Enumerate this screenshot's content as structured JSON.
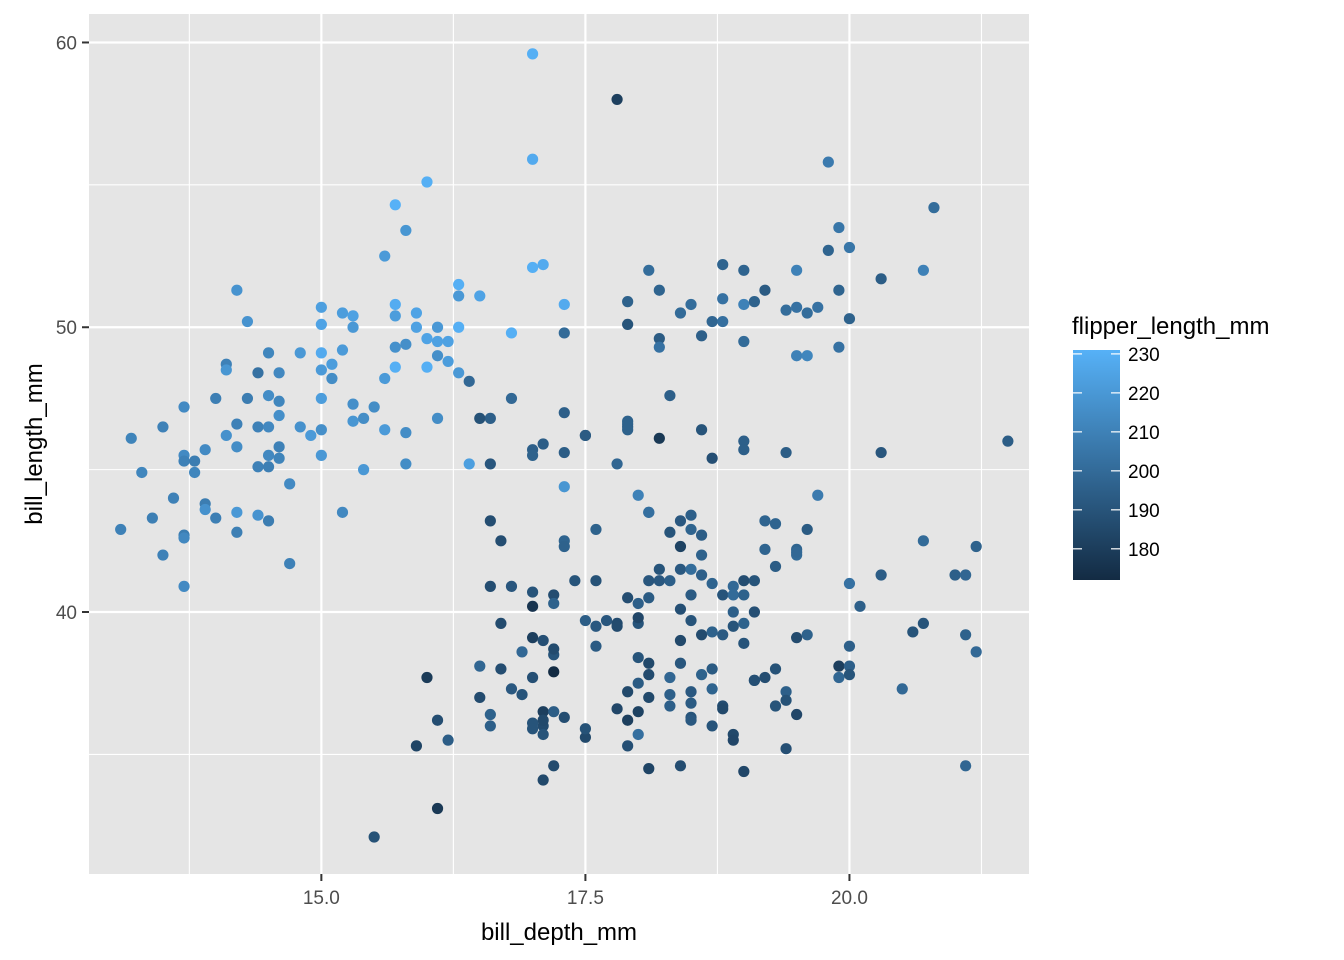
{
  "chart_data": {
    "type": "scatter",
    "xlabel": "bill_depth_mm",
    "ylabel": "bill_length_mm",
    "xlim": [
      12.8,
      21.7
    ],
    "ylim": [
      30.8,
      61
    ],
    "x_ticks": [
      15.0,
      17.5,
      20.0
    ],
    "x_tick_labels": [
      "15.0",
      "17.5",
      "20.0"
    ],
    "y_ticks": [
      40,
      50,
      60
    ],
    "y_tick_labels": [
      "40",
      "50",
      "60"
    ],
    "panel_background": "#e5e5e5",
    "grid_color": "#ffffff",
    "grid": true,
    "legend": {
      "title": "flipper_length_mm",
      "position": "right",
      "min": 172,
      "max": 231,
      "ticks": [
        180,
        190,
        200,
        210,
        220,
        230
      ],
      "tick_labels": [
        "180",
        "190",
        "200",
        "210",
        "220",
        "230"
      ],
      "color_low": "#132b43",
      "color_high": "#56b1f7"
    },
    "points": [
      [
        13.1,
        42.9,
        210
      ],
      [
        13.2,
        46.1,
        211
      ],
      [
        13.3,
        44.9,
        212
      ],
      [
        13.4,
        43.3,
        209
      ],
      [
        13.5,
        46.5,
        210
      ],
      [
        13.5,
        42.0,
        210
      ],
      [
        13.6,
        44.0,
        210
      ],
      [
        13.7,
        47.2,
        214
      ],
      [
        13.7,
        45.5,
        214
      ],
      [
        13.7,
        45.3,
        210
      ],
      [
        13.7,
        42.7,
        208
      ],
      [
        13.7,
        42.6,
        213
      ],
      [
        13.7,
        40.9,
        214
      ],
      [
        13.8,
        45.3,
        208
      ],
      [
        13.8,
        44.9,
        212
      ],
      [
        13.9,
        45.7,
        214
      ],
      [
        13.9,
        43.8,
        208
      ],
      [
        13.9,
        43.6,
        217
      ],
      [
        14.0,
        47.5,
        209
      ],
      [
        14.0,
        43.3,
        209
      ],
      [
        14.1,
        48.7,
        210
      ],
      [
        14.1,
        48.5,
        219
      ],
      [
        14.1,
        46.2,
        217
      ],
      [
        14.2,
        51.3,
        218
      ],
      [
        14.2,
        46.6,
        210
      ],
      [
        14.2,
        45.8,
        215
      ],
      [
        14.2,
        43.5,
        220
      ],
      [
        14.2,
        42.8,
        209
      ],
      [
        14.3,
        50.2,
        218
      ],
      [
        14.3,
        47.5,
        208
      ],
      [
        14.4,
        48.4,
        203
      ],
      [
        14.4,
        46.5,
        210
      ],
      [
        14.4,
        45.1,
        210
      ],
      [
        14.4,
        43.4,
        218
      ],
      [
        14.5,
        49.1,
        212
      ],
      [
        14.5,
        47.6,
        215
      ],
      [
        14.5,
        46.5,
        213
      ],
      [
        14.5,
        45.5,
        213
      ],
      [
        14.5,
        45.1,
        209
      ],
      [
        14.5,
        43.2,
        208
      ],
      [
        14.6,
        48.4,
        213
      ],
      [
        14.6,
        47.4,
        212
      ],
      [
        14.6,
        46.9,
        216
      ],
      [
        14.6,
        45.8,
        210
      ],
      [
        14.6,
        45.4,
        211
      ],
      [
        14.7,
        44.5,
        214
      ],
      [
        14.7,
        41.7,
        210
      ],
      [
        14.8,
        49.1,
        220
      ],
      [
        14.8,
        46.5,
        217
      ],
      [
        14.9,
        46.2,
        221
      ],
      [
        15.0,
        50.7,
        223
      ],
      [
        15.0,
        50.1,
        225
      ],
      [
        15.0,
        49.1,
        228
      ],
      [
        15.0,
        48.5,
        221
      ],
      [
        15.0,
        47.5,
        222
      ],
      [
        15.0,
        46.4,
        216
      ],
      [
        15.0,
        45.5,
        220
      ],
      [
        15.1,
        48.7,
        222
      ],
      [
        15.1,
        48.2,
        215
      ],
      [
        15.2,
        50.5,
        222
      ],
      [
        15.2,
        49.2,
        221
      ],
      [
        15.2,
        43.5,
        213
      ],
      [
        15.3,
        50.4,
        224
      ],
      [
        15.3,
        50.0,
        220
      ],
      [
        15.3,
        47.3,
        216
      ],
      [
        15.3,
        46.7,
        219
      ],
      [
        15.4,
        46.8,
        215
      ],
      [
        15.4,
        45.0,
        220
      ],
      [
        15.5,
        47.2,
        215
      ],
      [
        15.6,
        48.2,
        221
      ],
      [
        15.6,
        46.4,
        221
      ],
      [
        15.7,
        54.3,
        231
      ],
      [
        15.7,
        50.8,
        229
      ],
      [
        15.7,
        50.4,
        222
      ],
      [
        15.7,
        49.3,
        217
      ],
      [
        15.7,
        48.6,
        230
      ],
      [
        15.8,
        53.4,
        219
      ],
      [
        15.8,
        49.4,
        216
      ],
      [
        15.8,
        46.3,
        215
      ],
      [
        15.8,
        45.2,
        215
      ],
      [
        15.9,
        50.5,
        225
      ],
      [
        15.9,
        50.0,
        224
      ],
      [
        16.0,
        55.1,
        230
      ],
      [
        16.0,
        49.6,
        225
      ],
      [
        16.0,
        48.6,
        230
      ],
      [
        16.1,
        50.0,
        220
      ],
      [
        16.1,
        49.5,
        224
      ],
      [
        16.1,
        49.0,
        216
      ],
      [
        16.1,
        46.8,
        215
      ],
      [
        16.2,
        49.5,
        224
      ],
      [
        16.2,
        48.8,
        222
      ],
      [
        16.3,
        51.5,
        230
      ],
      [
        16.3,
        51.1,
        220
      ],
      [
        16.3,
        50.0,
        230
      ],
      [
        16.3,
        48.4,
        220
      ],
      [
        16.4,
        45.2,
        223
      ],
      [
        16.5,
        51.1,
        225
      ],
      [
        16.8,
        49.8,
        230
      ],
      [
        17.0,
        59.6,
        230
      ],
      [
        17.0,
        55.9,
        228
      ],
      [
        17.0,
        52.1,
        230
      ],
      [
        17.1,
        52.2,
        228
      ],
      [
        17.3,
        50.8,
        228
      ],
      [
        17.3,
        44.4,
        219
      ],
      [
        15.6,
        52.5,
        221
      ],
      [
        18.0,
        44.1,
        210
      ],
      [
        18.1,
        43.5,
        202
      ],
      [
        16.4,
        48.1,
        199
      ],
      [
        16.6,
        46.8,
        195
      ],
      [
        16.5,
        46.8,
        189
      ],
      [
        16.6,
        45.2,
        191
      ],
      [
        16.8,
        47.5,
        199
      ],
      [
        17.0,
        45.7,
        195
      ],
      [
        17.0,
        45.5,
        196
      ],
      [
        17.1,
        45.9,
        194
      ],
      [
        17.3,
        49.8,
        200
      ],
      [
        17.3,
        47.0,
        195
      ],
      [
        17.3,
        45.6,
        194
      ],
      [
        17.5,
        46.2,
        187
      ],
      [
        17.5,
        46.2,
        193
      ],
      [
        17.8,
        58.0,
        181
      ],
      [
        17.9,
        46.6,
        197
      ],
      [
        17.9,
        46.5,
        195
      ],
      [
        17.9,
        46.4,
        196
      ],
      [
        17.9,
        46.7,
        196
      ],
      [
        17.8,
        45.2,
        198
      ],
      [
        17.9,
        50.1,
        190
      ],
      [
        17.9,
        50.9,
        196
      ],
      [
        18.1,
        52.0,
        201
      ],
      [
        18.2,
        51.3,
        197
      ],
      [
        18.2,
        49.6,
        193
      ],
      [
        18.2,
        49.3,
        203
      ],
      [
        18.2,
        46.1,
        178
      ],
      [
        18.3,
        47.6,
        195
      ],
      [
        18.4,
        50.5,
        200
      ],
      [
        18.5,
        50.8,
        201
      ],
      [
        18.6,
        49.7,
        195
      ],
      [
        18.6,
        46.4,
        190
      ],
      [
        18.7,
        50.2,
        198
      ],
      [
        18.7,
        45.4,
        188
      ],
      [
        18.8,
        52.2,
        197
      ],
      [
        18.8,
        51.0,
        203
      ],
      [
        18.8,
        50.2,
        202
      ],
      [
        19.0,
        52.0,
        197
      ],
      [
        19.0,
        50.8,
        210
      ],
      [
        19.0,
        49.5,
        200
      ],
      [
        19.0,
        46.0,
        195
      ],
      [
        19.0,
        45.7,
        195
      ],
      [
        19.1,
        50.9,
        196
      ],
      [
        19.2,
        51.3,
        193
      ],
      [
        19.4,
        50.6,
        201
      ],
      [
        19.4,
        45.6,
        194
      ],
      [
        19.5,
        52.0,
        210
      ],
      [
        19.5,
        50.7,
        203
      ],
      [
        19.5,
        49.0,
        210
      ],
      [
        19.6,
        50.5,
        201
      ],
      [
        19.6,
        49.0,
        212
      ],
      [
        19.7,
        50.7,
        203
      ],
      [
        19.7,
        44.1,
        207
      ],
      [
        19.8,
        55.8,
        207
      ],
      [
        19.8,
        52.7,
        197
      ],
      [
        19.9,
        53.5,
        205
      ],
      [
        19.9,
        51.3,
        197
      ],
      [
        19.9,
        49.3,
        203
      ],
      [
        20.0,
        52.8,
        205
      ],
      [
        20.0,
        50.3,
        196
      ],
      [
        20.3,
        51.7,
        194
      ],
      [
        20.3,
        45.6,
        191
      ],
      [
        20.7,
        52.0,
        210
      ],
      [
        20.8,
        54.2,
        201
      ],
      [
        21.5,
        46.0,
        194
      ],
      [
        16.6,
        43.2,
        187
      ],
      [
        16.7,
        42.5,
        187
      ],
      [
        16.6,
        40.9,
        187
      ],
      [
        16.8,
        40.9,
        191
      ],
      [
        16.7,
        39.6,
        186
      ],
      [
        16.8,
        37.3,
        192
      ],
      [
        16.9,
        38.6,
        199
      ],
      [
        17.0,
        40.2,
        176
      ],
      [
        17.0,
        40.7,
        190
      ],
      [
        17.0,
        39.1,
        181
      ],
      [
        17.0,
        37.7,
        188
      ],
      [
        17.1,
        39.0,
        188
      ],
      [
        17.1,
        36.5,
        181
      ],
      [
        17.1,
        36.0,
        186
      ],
      [
        17.2,
        40.6,
        187
      ],
      [
        17.2,
        40.3,
        196
      ],
      [
        17.2,
        38.5,
        190
      ],
      [
        17.2,
        37.9,
        172
      ],
      [
        17.3,
        42.5,
        197
      ],
      [
        17.3,
        42.3,
        196
      ],
      [
        17.4,
        41.1,
        190
      ],
      [
        17.5,
        39.7,
        194
      ],
      [
        17.6,
        42.9,
        196
      ],
      [
        17.6,
        41.1,
        189
      ],
      [
        17.6,
        38.8,
        193
      ],
      [
        17.7,
        39.7,
        191
      ],
      [
        17.8,
        39.6,
        186
      ],
      [
        17.8,
        39.5,
        186
      ],
      [
        17.9,
        40.5,
        187
      ],
      [
        18.0,
        40.3,
        195
      ],
      [
        18.0,
        39.6,
        190
      ],
      [
        18.0,
        39.8,
        184
      ],
      [
        18.0,
        38.4,
        190
      ],
      [
        18.0,
        37.5,
        193
      ],
      [
        18.0,
        36.5,
        182
      ],
      [
        18.1,
        41.1,
        191
      ],
      [
        18.1,
        40.5,
        193
      ],
      [
        18.1,
        38.2,
        185
      ],
      [
        18.1,
        37.8,
        186
      ],
      [
        18.1,
        37.0,
        185
      ],
      [
        18.2,
        41.1,
        192
      ],
      [
        18.2,
        41.5,
        190
      ],
      [
        18.3,
        42.8,
        190
      ],
      [
        18.3,
        41.1,
        195
      ],
      [
        18.3,
        37.7,
        198
      ],
      [
        18.4,
        43.2,
        192
      ],
      [
        18.4,
        42.3,
        182
      ],
      [
        18.4,
        41.5,
        192
      ],
      [
        18.4,
        40.1,
        188
      ],
      [
        18.4,
        39.0,
        185
      ],
      [
        18.4,
        38.2,
        191
      ],
      [
        18.5,
        41.5,
        201
      ],
      [
        18.5,
        40.6,
        193
      ],
      [
        18.5,
        39.7,
        190
      ],
      [
        18.5,
        36.8,
        193
      ],
      [
        18.5,
        36.3,
        190
      ],
      [
        18.6,
        42.0,
        196
      ],
      [
        18.6,
        41.3,
        195
      ],
      [
        18.6,
        39.2,
        186
      ],
      [
        18.6,
        37.8,
        196
      ],
      [
        18.7,
        41.0,
        197
      ],
      [
        18.7,
        39.3,
        196
      ],
      [
        18.7,
        38.0,
        193
      ],
      [
        18.7,
        36.0,
        190
      ],
      [
        18.8,
        40.6,
        190
      ],
      [
        18.8,
        39.2,
        193
      ],
      [
        18.8,
        36.7,
        187
      ],
      [
        18.9,
        40.9,
        199
      ],
      [
        18.9,
        40.6,
        200
      ],
      [
        18.9,
        40.0,
        195
      ],
      [
        18.9,
        39.5,
        190
      ],
      [
        18.9,
        35.7,
        185
      ],
      [
        19.0,
        41.1,
        187
      ],
      [
        19.0,
        40.6,
        196
      ],
      [
        19.0,
        39.6,
        196
      ],
      [
        19.0,
        38.9,
        190
      ],
      [
        19.0,
        34.4,
        184
      ],
      [
        19.1,
        41.1,
        190
      ],
      [
        19.1,
        40.0,
        188
      ],
      [
        19.1,
        37.6,
        194
      ],
      [
        19.2,
        43.2,
        197
      ],
      [
        19.2,
        42.2,
        197
      ],
      [
        19.2,
        37.7,
        187
      ],
      [
        19.3,
        43.1,
        197
      ],
      [
        19.3,
        41.6,
        194
      ],
      [
        19.3,
        38.0,
        189
      ],
      [
        19.4,
        37.2,
        195
      ],
      [
        19.4,
        36.9,
        189
      ],
      [
        19.5,
        42.2,
        197
      ],
      [
        19.5,
        42.0,
        200
      ],
      [
        19.5,
        39.1,
        186
      ],
      [
        19.5,
        36.4,
        184
      ],
      [
        19.6,
        39.2,
        196
      ],
      [
        19.9,
        37.7,
        198
      ],
      [
        19.9,
        38.1,
        181
      ],
      [
        20.0,
        41.0,
        203
      ],
      [
        20.0,
        38.8,
        195
      ],
      [
        20.0,
        38.1,
        195
      ],
      [
        20.0,
        37.8,
        190
      ],
      [
        20.1,
        40.2,
        195
      ],
      [
        20.3,
        41.3,
        194
      ],
      [
        20.5,
        37.3,
        199
      ],
      [
        20.6,
        39.3,
        190
      ],
      [
        20.7,
        42.5,
        200
      ],
      [
        20.7,
        39.6,
        190
      ],
      [
        21.0,
        41.3,
        195
      ],
      [
        21.1,
        41.3,
        198
      ],
      [
        21.1,
        39.2,
        196
      ],
      [
        21.1,
        34.6,
        198
      ],
      [
        21.2,
        42.3,
        196
      ],
      [
        21.2,
        38.6,
        199
      ],
      [
        15.5,
        32.1,
        189
      ],
      [
        16.0,
        37.7,
        179
      ],
      [
        15.9,
        35.3,
        183
      ],
      [
        16.1,
        36.2,
        187
      ],
      [
        16.1,
        33.1,
        178
      ],
      [
        16.2,
        35.5,
        194
      ],
      [
        16.5,
        38.1,
        198
      ],
      [
        16.5,
        37.0,
        186
      ],
      [
        16.6,
        36.4,
        196
      ],
      [
        16.6,
        36.0,
        195
      ],
      [
        16.7,
        38.0,
        187
      ],
      [
        16.9,
        37.1,
        190
      ],
      [
        17.0,
        36.1,
        190
      ],
      [
        17.0,
        35.9,
        190
      ],
      [
        17.1,
        35.7,
        190
      ],
      [
        17.1,
        34.1,
        185
      ],
      [
        17.1,
        36.2,
        185
      ],
      [
        17.2,
        36.5,
        194
      ],
      [
        17.2,
        34.6,
        186
      ],
      [
        17.2,
        38.7,
        186
      ],
      [
        17.3,
        36.3,
        187
      ],
      [
        17.5,
        35.6,
        185
      ],
      [
        17.5,
        35.9,
        189
      ],
      [
        17.6,
        39.5,
        192
      ],
      [
        17.8,
        36.6,
        184
      ],
      [
        17.9,
        35.3,
        188
      ],
      [
        17.9,
        36.2,
        181
      ],
      [
        17.9,
        37.2,
        185
      ],
      [
        18.0,
        35.7,
        202
      ],
      [
        18.1,
        34.5,
        183
      ],
      [
        18.3,
        36.7,
        195
      ],
      [
        18.3,
        37.1,
        195
      ],
      [
        18.4,
        34.6,
        187
      ],
      [
        18.5,
        36.2,
        192
      ],
      [
        18.5,
        37.2,
        192
      ],
      [
        18.7,
        37.3,
        197
      ],
      [
        18.8,
        36.6,
        185
      ],
      [
        18.9,
        35.5,
        184
      ],
      [
        19.1,
        37.6,
        188
      ],
      [
        19.3,
        36.7,
        190
      ],
      [
        19.4,
        35.2,
        188
      ],
      [
        19.5,
        42.1,
        199
      ],
      [
        19.6,
        42.9,
        193
      ],
      [
        18.1,
        43.5,
        202
      ],
      [
        18.5,
        43.4,
        195
      ],
      [
        18.5,
        42.9,
        197
      ],
      [
        18.6,
        42.7,
        194
      ]
    ]
  }
}
